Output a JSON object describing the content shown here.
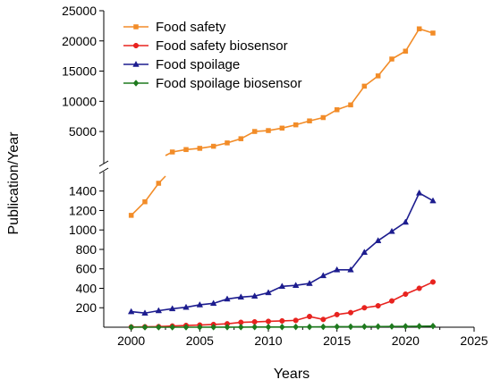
{
  "chart_data": {
    "type": "line",
    "xlabel": "Years",
    "ylabel": "Publication/Year",
    "xlim": [
      1998,
      2025
    ],
    "x_ticks": [
      2000,
      2005,
      2010,
      2015,
      2020,
      2025
    ],
    "y_upper_ticks": [
      5000,
      10000,
      15000,
      20000,
      25000
    ],
    "y_lower_ticks": [
      200,
      400,
      600,
      800,
      1000,
      1200,
      1400
    ],
    "y_break": true,
    "y_upper_range": [
      1600,
      25000
    ],
    "y_lower_range": [
      0,
      1480
    ],
    "legend_position": "top-left",
    "x": [
      2000,
      2001,
      2002,
      2003,
      2004,
      2005,
      2006,
      2007,
      2008,
      2009,
      2010,
      2011,
      2012,
      2013,
      2014,
      2015,
      2016,
      2017,
      2018,
      2019,
      2020,
      2021,
      2022
    ],
    "series": [
      {
        "name": "Food safety",
        "color": "#f28c28",
        "marker": "square",
        "values": [
          1150,
          1290,
          1480,
          1600,
          2000,
          2200,
          2550,
          3100,
          3800,
          5000,
          5150,
          5550,
          6100,
          6750,
          7300,
          8600,
          9400,
          12500,
          14200,
          17000,
          18300,
          22000,
          21300
        ]
      },
      {
        "name": "Food safety biosensor",
        "color": "#e8231f",
        "marker": "circle",
        "values": [
          2,
          4,
          6,
          12,
          18,
          22,
          28,
          35,
          50,
          55,
          60,
          65,
          70,
          110,
          80,
          130,
          150,
          200,
          220,
          270,
          340,
          400,
          465
        ]
      },
      {
        "name": "Food spoilage",
        "color": "#1d1d8f",
        "marker": "triangle",
        "values": [
          160,
          145,
          170,
          190,
          205,
          230,
          245,
          290,
          310,
          320,
          355,
          420,
          430,
          450,
          530,
          590,
          590,
          770,
          890,
          985,
          1080,
          1380,
          1300
        ]
      },
      {
        "name": "Food spoilage biosensor",
        "color": "#1e7a1e",
        "marker": "diamond",
        "values": [
          0,
          0,
          0,
          0,
          0,
          0,
          1,
          1,
          1,
          2,
          2,
          2,
          3,
          3,
          4,
          5,
          5,
          6,
          7,
          8,
          9,
          10,
          12
        ]
      }
    ]
  }
}
